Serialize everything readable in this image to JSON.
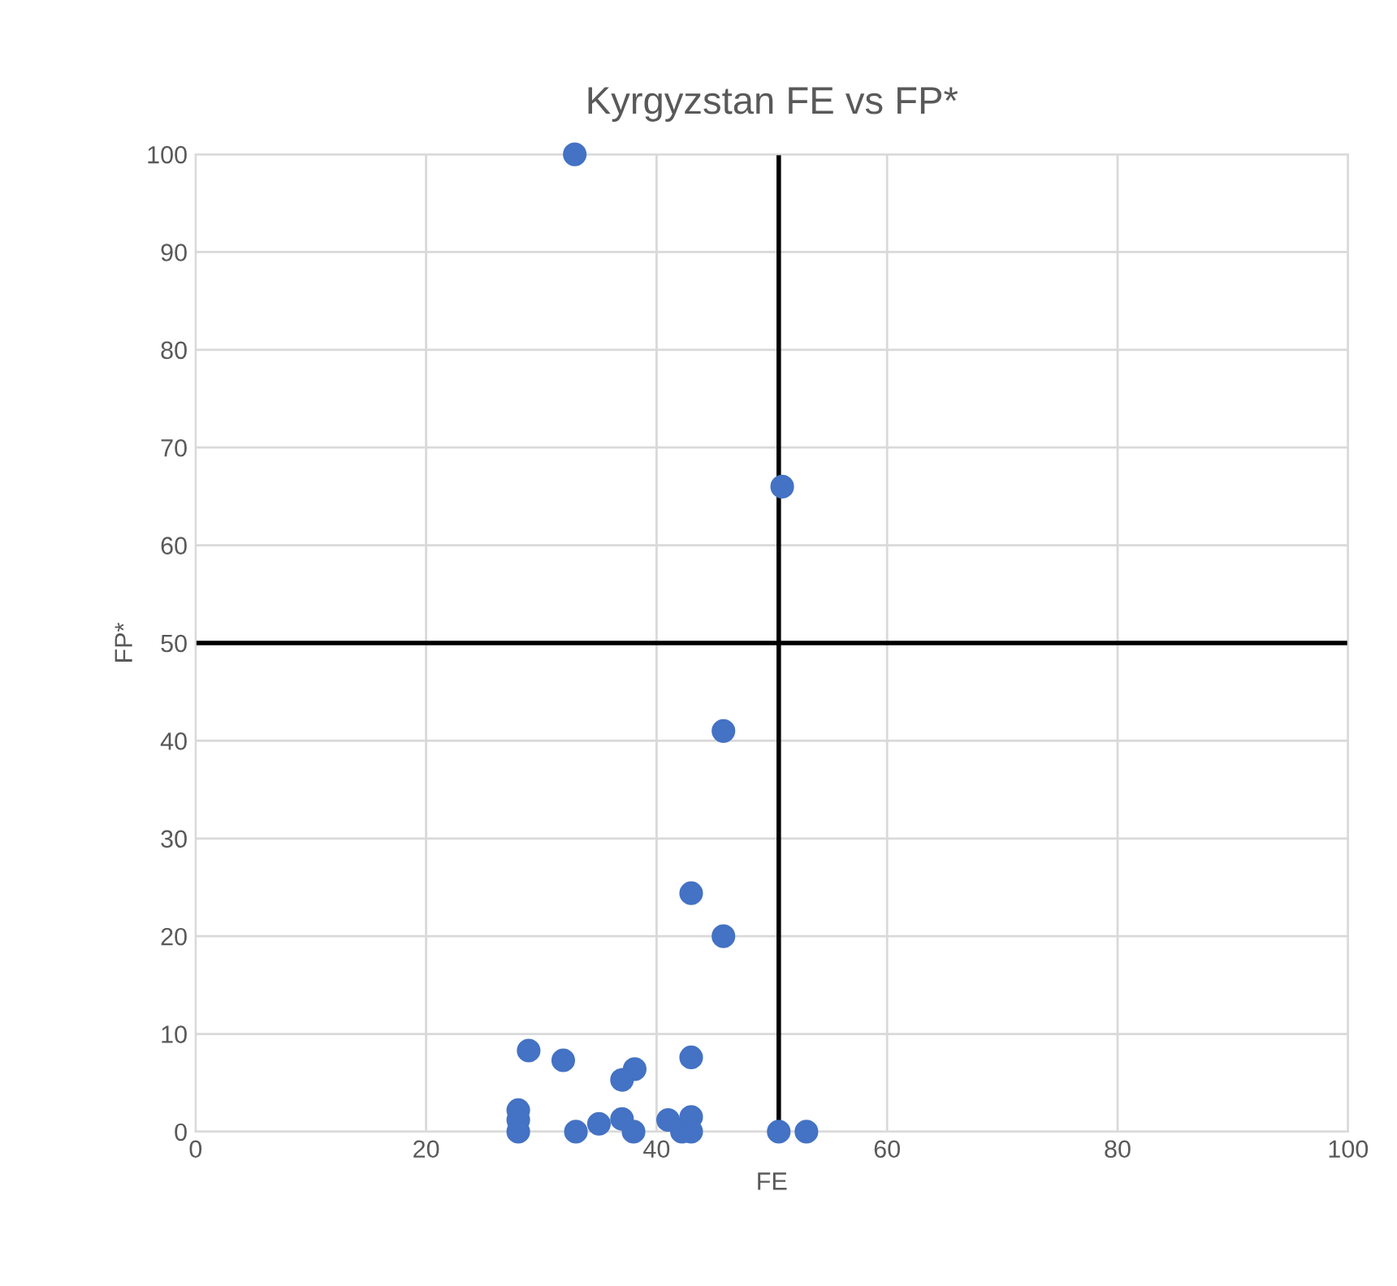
{
  "chart_data": {
    "type": "scatter",
    "title": "Kyrgyzstan FE vs FP*",
    "xlabel": "FE",
    "ylabel": "FP*",
    "series": [
      {
        "color": "#4472c4",
        "x": [
          32.9,
          50.9,
          45.8,
          43.0,
          45.8,
          28.9,
          31.9,
          38.1,
          37.0,
          43.0,
          28.0,
          28.0,
          28.0,
          33.0,
          35.0,
          37.0,
          38.0,
          41.0,
          42.2,
          43.0,
          43.0,
          50.6,
          53.0
        ],
        "values": [
          100,
          66,
          41,
          24.4,
          20,
          8.3,
          7.3,
          6.4,
          5.3,
          7.6,
          2.2,
          1.2,
          0,
          0,
          0.8,
          1.3,
          0,
          1.2,
          0,
          1.5,
          0,
          0,
          0
        ]
      }
    ],
    "xlim": [
      0,
      100
    ],
    "ylim": [
      0,
      100
    ],
    "xticks": [
      0,
      20,
      40,
      60,
      80,
      100
    ],
    "yticks": [
      0,
      10,
      20,
      30,
      40,
      50,
      60,
      70,
      80,
      90,
      100
    ],
    "grid": true,
    "marker": "circle",
    "ref_lines": [
      {
        "axis": "x",
        "value": 50.6,
        "color": "#000000"
      },
      {
        "axis": "y",
        "value": 50,
        "color": "#000000"
      }
    ]
  }
}
